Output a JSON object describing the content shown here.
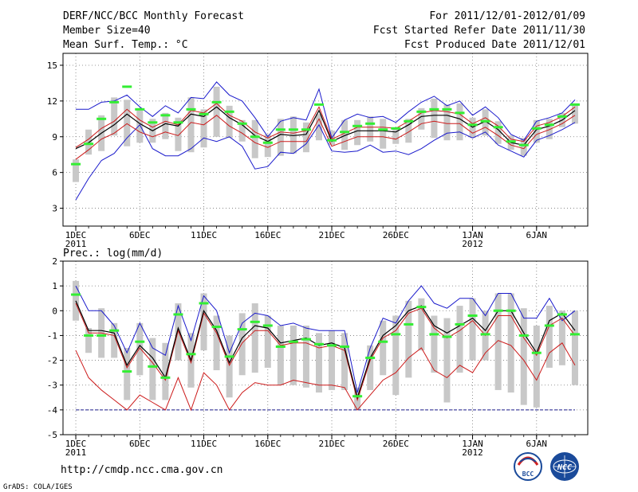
{
  "header": {
    "title": "DERF/NCC/BCC Monthly Forecast",
    "member_size": "Member Size=40",
    "variable": "Mean Surf. Temp.: °C",
    "forecast_period": "For 2011/12/01-2012/01/09",
    "started_refer": "Fcst Started Refer Date 2011/11/30",
    "produced": "Fcst Produced Date 2011/12/01"
  },
  "footer": {
    "url": "http://cmdp.ncc.cma.gov.cn",
    "grads": "GrADS: COLA/IGES",
    "logo_bcc": "BCC",
    "logo_ncc": "NCC"
  },
  "chart_data": [
    {
      "id": "temp",
      "type": "line",
      "title": "Mean Surf. Temp.: °C",
      "ylim": [
        1.5,
        16
      ],
      "yticks": [
        3,
        6,
        9,
        12,
        15
      ],
      "xlim": [
        0,
        41
      ],
      "x_tick_labels": [
        "1DEC",
        "6DEC",
        "11DEC",
        "16DEC",
        "21DEC",
        "26DEC",
        "1JAN",
        "6JAN"
      ],
      "x_tick_sub": [
        "2011",
        "",
        "",
        "",
        "",
        "",
        "2012",
        ""
      ],
      "x_tick_days": [
        1,
        6,
        11,
        16,
        21,
        26,
        32,
        37
      ],
      "days": [
        1,
        2,
        3,
        4,
        5,
        6,
        7,
        8,
        9,
        10,
        11,
        12,
        13,
        14,
        15,
        16,
        17,
        18,
        19,
        20,
        21,
        22,
        23,
        24,
        25,
        26,
        27,
        28,
        29,
        30,
        31,
        32,
        33,
        34,
        35,
        36,
        37,
        38,
        39,
        40
      ],
      "max": [
        3.7,
        5.5,
        7.0,
        7.6,
        8.9,
        10.0,
        8.0,
        7.4,
        7.4,
        8.0,
        8.9,
        8.6,
        9.0,
        8.2,
        6.3,
        6.5,
        7.7,
        7.6,
        8.4,
        10.0,
        7.8,
        7.7,
        7.8,
        8.3,
        7.7,
        7.8,
        7.5,
        8.0,
        8.7,
        9.3,
        9.4,
        8.9,
        9.4,
        8.3,
        7.8,
        7.3,
        8.7,
        9.1,
        9.6,
        10.2
      ],
      "upper": [
        11.3,
        11.3,
        11.9,
        12.0,
        12.5,
        11.5,
        10.7,
        11.6,
        11.0,
        12.3,
        12.2,
        13.6,
        12.5,
        12.0,
        10.6,
        9.0,
        10.3,
        10.6,
        10.4,
        13.0,
        8.9,
        10.4,
        10.9,
        10.6,
        10.7,
        10.2,
        11.1,
        11.9,
        12.4,
        11.6,
        12.0,
        10.8,
        11.5,
        10.6,
        9.2,
        8.7,
        10.3,
        10.6,
        11.0,
        12.1
      ],
      "mean": [
        8.0,
        8.5,
        9.3,
        10.0,
        10.9,
        10.1,
        9.5,
        10.1,
        9.9,
        10.9,
        10.7,
        11.5,
        10.6,
        10.0,
        9.1,
        8.6,
        9.2,
        9.1,
        9.2,
        11.2,
        8.6,
        9.1,
        9.5,
        9.5,
        9.5,
        9.4,
        10.0,
        10.7,
        10.8,
        10.8,
        10.5,
        9.8,
        10.3,
        9.6,
        8.5,
        8.3,
        9.6,
        9.9,
        10.4,
        11.2
      ],
      "red_upper": [
        8.1,
        8.8,
        9.7,
        10.3,
        11.3,
        10.4,
        9.8,
        10.3,
        10.0,
        11.2,
        11.0,
        11.8,
        10.8,
        10.3,
        9.4,
        8.9,
        9.4,
        9.3,
        9.5,
        11.5,
        8.8,
        9.3,
        9.8,
        9.8,
        9.8,
        9.7,
        10.3,
        11.0,
        11.2,
        11.1,
        10.9,
        10.1,
        10.6,
        9.9,
        8.8,
        8.6,
        9.9,
        10.2,
        10.7,
        11.5
      ],
      "red_lower": [
        7.1,
        7.9,
        8.8,
        9.3,
        10.1,
        9.4,
        9.0,
        9.4,
        9.1,
        10.2,
        10.0,
        10.8,
        9.9,
        9.3,
        8.5,
        8.1,
        8.6,
        8.6,
        8.6,
        10.5,
        8.2,
        8.6,
        9.0,
        9.0,
        9.0,
        8.8,
        9.4,
        10.1,
        10.3,
        10.1,
        10.1,
        9.3,
        9.8,
        9.1,
        8.3,
        8.0,
        9.2,
        9.6,
        10.1,
        10.8
      ],
      "obs": [
        6.7,
        8.4,
        10.5,
        11.9,
        13.2,
        11.3,
        10.2,
        10.8,
        10.2,
        11.3,
        10.9,
        11.9,
        11.1,
        10.1,
        9.0,
        8.5,
        9.6,
        9.6,
        9.6,
        11.7,
        8.7,
        9.4,
        9.9,
        10.1,
        9.6,
        9.7,
        10.3,
        11.1,
        11.3,
        11.3,
        11.0,
        10.0,
        10.3,
        9.8,
        8.6,
        8.3,
        9.7,
        10.0,
        10.7,
        11.7
      ],
      "box_top": [
        7.1,
        9.6,
        10.8,
        12.3,
        12.1,
        11.2,
        10.5,
        11.0,
        10.6,
        12.3,
        11.3,
        13.2,
        11.6,
        10.4,
        10.4,
        9.2,
        10.5,
        10.7,
        10.2,
        10.9,
        9.5,
        10.4,
        10.4,
        10.7,
        10.5,
        9.7,
        10.5,
        11.4,
        12.2,
        11.7,
        11.8,
        10.6,
        11.3,
        10.3,
        9.1,
        8.9,
        10.4,
        10.5,
        11.0,
        11.8
      ],
      "box_bottom": [
        5.2,
        7.5,
        7.8,
        9.1,
        8.2,
        8.5,
        8.5,
        8.8,
        7.8,
        7.7,
        8.1,
        9.0,
        8.9,
        8.6,
        7.2,
        7.3,
        7.4,
        7.6,
        7.7,
        8.7,
        8.3,
        7.9,
        8.3,
        8.6,
        8.0,
        8.4,
        8.5,
        9.6,
        8.9,
        8.7,
        8.7,
        8.9,
        9.1,
        8.4,
        7.9,
        7.4,
        8.5,
        8.8,
        9.8,
        10.1
      ]
    },
    {
      "id": "prec",
      "type": "line",
      "title": "Prec.: log(mm/d)",
      "ylim": [
        -5,
        2
      ],
      "yticks": [
        -5,
        -4,
        -3,
        -2,
        -1,
        0,
        1,
        2
      ],
      "xlim": [
        0,
        41
      ],
      "x_tick_labels": [
        "1DEC",
        "6DEC",
        "11DEC",
        "16DEC",
        "21DEC",
        "26DEC",
        "1JAN",
        "6JAN"
      ],
      "x_tick_sub": [
        "2011",
        "",
        "",
        "",
        "",
        "",
        "2012",
        ""
      ],
      "x_tick_days": [
        1,
        6,
        11,
        16,
        21,
        26,
        32,
        37
      ],
      "floor": -4,
      "days": [
        1,
        2,
        3,
        4,
        5,
        6,
        7,
        8,
        9,
        10,
        11,
        12,
        13,
        14,
        15,
        16,
        17,
        18,
        19,
        20,
        21,
        22,
        23,
        24,
        25,
        26,
        27,
        28,
        29,
        30,
        31,
        32,
        33,
        34,
        35,
        36,
        37,
        38,
        39,
        40
      ],
      "upper": [
        1.0,
        0.0,
        0.0,
        -0.6,
        -1.7,
        -0.5,
        -1.5,
        -1.8,
        0.2,
        -1.2,
        0.6,
        0.0,
        -1.7,
        -0.5,
        -0.1,
        -0.2,
        -0.6,
        -0.5,
        -0.7,
        -0.8,
        -0.8,
        -0.8,
        -3.3,
        -1.5,
        -0.3,
        -0.5,
        0.4,
        1.0,
        0.3,
        0.1,
        0.5,
        0.5,
        -0.2,
        0.7,
        0.7,
        -0.3,
        -0.3,
        0.5,
        -0.4,
        0.0
      ],
      "mean": [
        0.4,
        -0.8,
        -0.8,
        -0.9,
        -2.2,
        -1.4,
        -1.9,
        -2.7,
        -0.7,
        -2.0,
        0.0,
        -0.8,
        -2.1,
        -1.1,
        -0.6,
        -0.7,
        -1.3,
        -1.2,
        -1.1,
        -1.4,
        -1.3,
        -1.5,
        -3.5,
        -1.9,
        -1.0,
        -0.6,
        0.0,
        0.2,
        -0.6,
        -0.9,
        -0.6,
        -0.3,
        -0.8,
        0.0,
        0.0,
        -0.9,
        -1.7,
        -0.4,
        -0.1,
        -0.8
      ],
      "red_upper": [
        0.3,
        -0.9,
        -0.9,
        -1.0,
        -2.3,
        -1.5,
        -2.1,
        -2.8,
        -0.8,
        -2.1,
        -0.1,
        -0.9,
        -2.2,
        -1.3,
        -0.8,
        -0.8,
        -1.4,
        -1.3,
        -1.3,
        -1.5,
        -1.4,
        -1.6,
        -3.6,
        -2.0,
        -1.1,
        -0.8,
        -0.1,
        0.1,
        -0.7,
        -1.1,
        -0.8,
        -0.4,
        -1.0,
        -0.2,
        -0.2,
        -1.1,
        -1.8,
        -0.6,
        -0.3,
        -1.0
      ],
      "red_lower": [
        -1.6,
        -2.7,
        -3.2,
        -3.6,
        -4.0,
        -3.4,
        -3.7,
        -4.0,
        -2.7,
        -4.0,
        -2.5,
        -3.0,
        -4.0,
        -3.3,
        -2.9,
        -3.0,
        -3.0,
        -2.8,
        -2.9,
        -3.0,
        -3.0,
        -3.1,
        -4.0,
        -3.4,
        -2.8,
        -2.5,
        -1.9,
        -1.5,
        -2.4,
        -2.7,
        -2.2,
        -2.5,
        -1.7,
        -1.2,
        -1.4,
        -2.0,
        -2.8,
        -1.7,
        -1.3,
        -2.2
      ],
      "obs": [
        0.65,
        -1.0,
        -1.0,
        -0.8,
        -2.45,
        -1.25,
        -2.25,
        -2.7,
        -0.15,
        -1.75,
        0.3,
        -0.65,
        -1.85,
        -0.75,
        -0.45,
        -0.6,
        -1.45,
        -1.25,
        -1.15,
        -1.35,
        -1.4,
        -1.45,
        -3.45,
        -1.9,
        -1.25,
        -0.95,
        -0.55,
        0.15,
        -0.95,
        -1.05,
        -0.55,
        -0.2,
        -0.95,
        0.0,
        0.0,
        -1.0,
        -1.7,
        -0.6,
        -0.15,
        -0.95
      ],
      "box_top": [
        1.2,
        -0.7,
        0.1,
        -0.5,
        -1.5,
        -0.5,
        -1.1,
        -1.3,
        0.3,
        -0.9,
        0.7,
        -0.2,
        -1.0,
        -0.1,
        0.3,
        -0.2,
        -0.6,
        -0.6,
        -0.6,
        -0.9,
        -0.8,
        -0.9,
        -3.1,
        -1.4,
        -0.4,
        -0.2,
        0.4,
        0.5,
        -0.2,
        -0.3,
        0.2,
        0.5,
        0.0,
        0.7,
        0.7,
        0.1,
        -0.6,
        0.2,
        0.0,
        0.0
      ],
      "box_bottom": [
        -0.4,
        -1.7,
        -1.9,
        -1.9,
        -3.6,
        -2.6,
        -3.6,
        -3.6,
        -2.0,
        -3.1,
        -1.6,
        -2.4,
        -3.5,
        -2.6,
        -2.5,
        -2.3,
        -3.0,
        -3.0,
        -3.1,
        -3.3,
        -3.2,
        -3.2,
        -4.0,
        -3.2,
        -2.6,
        -3.4,
        -2.7,
        -1.6,
        -2.5,
        -3.7,
        -2.5,
        -2.0,
        -2.0,
        -3.2,
        -3.3,
        -3.8,
        -3.9,
        -2.3,
        -2.2,
        -3.0
      ]
    }
  ]
}
